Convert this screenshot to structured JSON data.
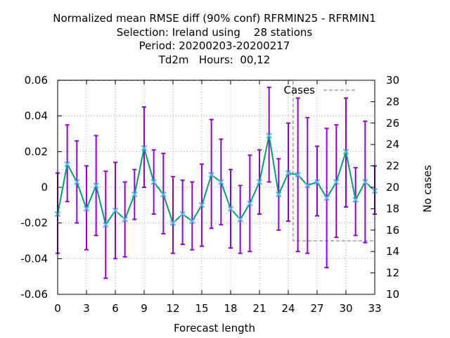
{
  "chart_data": {
    "type": "line",
    "title_lines": [
      "Normalized mean RMSE diff (90% conf) RFRMIN25 - RFRMIN1",
      "Selection: Ireland using    28 stations",
      "Period: 20200203-20200217",
      "Td2m   Hours:  00,12"
    ],
    "xlabel": "Forecast length",
    "ylabel": "",
    "y2label": "No cases",
    "xlim": [
      0,
      33
    ],
    "ylim": [
      -0.06,
      0.06
    ],
    "y2lim": [
      10,
      30
    ],
    "x_ticks": [
      0,
      3,
      6,
      9,
      12,
      15,
      18,
      21,
      24,
      27,
      30,
      33
    ],
    "y_ticks": [
      -0.06,
      -0.04,
      -0.02,
      0,
      0.02,
      0.04,
      0.06
    ],
    "y_tick_labels": [
      "-0.06",
      "-0.04",
      "-0.02",
      "0",
      "0.02",
      "0.04",
      "0.06"
    ],
    "y2_ticks": [
      10,
      12,
      14,
      16,
      18,
      20,
      22,
      24,
      26,
      28,
      30
    ],
    "grid": true,
    "legend": {
      "position": "top-right",
      "entries": [
        "Cases"
      ]
    },
    "colors": {
      "mean": "#009e73",
      "marker": "#56b4e9",
      "errorbar": "#9400d3",
      "cases": "#a0a0a0"
    },
    "series": [
      {
        "kind": "mean_with_errorbars",
        "x": [
          0,
          1,
          2,
          3,
          4,
          5,
          6,
          7,
          8,
          9,
          10,
          11,
          12,
          13,
          14,
          15,
          16,
          17,
          18,
          19,
          20,
          21,
          22,
          23,
          24,
          25,
          26,
          27,
          28,
          29,
          30,
          31,
          32,
          33
        ],
        "values": [
          -0.015,
          0.013,
          0.003,
          -0.012,
          0.001,
          -0.021,
          -0.013,
          -0.018,
          -0.004,
          0.022,
          0.003,
          -0.004,
          -0.02,
          -0.015,
          -0.019,
          -0.01,
          0.007,
          0.003,
          -0.012,
          -0.018,
          -0.009,
          0.003,
          0.029,
          -0.004,
          0.008,
          0.007,
          0.001,
          0.003,
          -0.006,
          0.003,
          0.02,
          -0.007,
          0.003,
          -0.002
        ],
        "lower": [
          -0.037,
          -0.008,
          -0.02,
          -0.035,
          -0.027,
          -0.051,
          -0.04,
          -0.039,
          -0.018,
          0.0,
          -0.015,
          -0.026,
          -0.037,
          -0.032,
          -0.035,
          -0.033,
          -0.023,
          -0.021,
          -0.034,
          -0.037,
          -0.036,
          -0.015,
          0.003,
          -0.024,
          -0.019,
          -0.036,
          -0.037,
          -0.016,
          -0.045,
          -0.028,
          -0.011,
          -0.027,
          -0.031,
          -0.015
        ],
        "upper": [
          0.008,
          0.035,
          0.026,
          0.012,
          0.029,
          0.009,
          0.014,
          0.003,
          0.01,
          0.045,
          0.021,
          0.019,
          0.006,
          0.004,
          0.003,
          0.013,
          0.038,
          0.027,
          0.01,
          0.001,
          0.018,
          0.021,
          0.056,
          0.016,
          0.036,
          0.05,
          0.039,
          0.023,
          0.033,
          0.035,
          0.05,
          0.011,
          0.037,
          0.012
        ]
      },
      {
        "name": "Cases",
        "axis": "y2",
        "x": [
          0,
          1,
          2,
          3,
          4,
          5,
          6,
          7,
          8,
          9,
          10,
          11,
          12,
          13,
          14,
          15,
          16,
          17,
          18,
          19,
          20,
          21,
          22,
          23,
          24,
          25,
          26,
          27,
          28,
          29,
          30,
          31,
          32,
          33
        ],
        "values": [
          30,
          30,
          30,
          30,
          30,
          30,
          30,
          30,
          30,
          30,
          30,
          30,
          30,
          30,
          30,
          30,
          30,
          30,
          30,
          30,
          30,
          30,
          30,
          30,
          30,
          15,
          15,
          15,
          15,
          15,
          15,
          15,
          15,
          15
        ]
      }
    ]
  }
}
